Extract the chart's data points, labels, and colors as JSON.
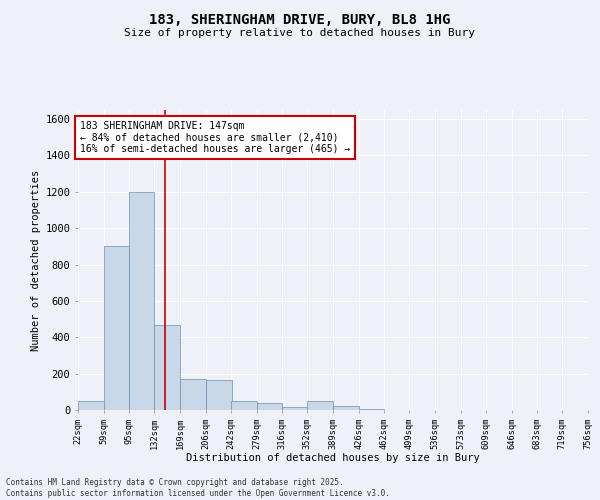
{
  "title_line1": "183, SHERINGHAM DRIVE, BURY, BL8 1HG",
  "title_line2": "Size of property relative to detached houses in Bury",
  "xlabel": "Distribution of detached houses by size in Bury",
  "ylabel": "Number of detached properties",
  "footer_line1": "Contains HM Land Registry data © Crown copyright and database right 2025.",
  "footer_line2": "Contains public sector information licensed under the Open Government Licence v3.0.",
  "bar_edges": [
    22,
    59,
    95,
    132,
    169,
    206,
    242,
    279,
    316,
    352,
    389,
    426,
    462,
    499,
    536,
    573,
    609,
    646,
    683,
    719,
    756
  ],
  "bar_heights": [
    50,
    900,
    1200,
    470,
    170,
    165,
    50,
    40,
    15,
    50,
    20,
    5,
    2,
    2,
    1,
    1,
    0,
    0,
    0,
    0
  ],
  "bar_color": "#c8d8e8",
  "bar_edgecolor": "#7090b0",
  "background_color": "#eef2f8",
  "grid_color": "#ffffff",
  "red_line_x": 147,
  "ylim": [
    0,
    1650
  ],
  "yticks": [
    0,
    200,
    400,
    600,
    800,
    1000,
    1200,
    1400,
    1600
  ],
  "annotation_title": "183 SHERINGHAM DRIVE: 147sqm",
  "annotation_line1": "← 84% of detached houses are smaller (2,410)",
  "annotation_line2": "16% of semi-detached houses are larger (465) →",
  "annotation_box_color": "#ffffff",
  "annotation_box_edgecolor": "#cc0000",
  "tick_labels": [
    "22sqm",
    "59sqm",
    "95sqm",
    "132sqm",
    "169sqm",
    "206sqm",
    "242sqm",
    "279sqm",
    "316sqm",
    "352sqm",
    "389sqm",
    "426sqm",
    "462sqm",
    "499sqm",
    "536sqm",
    "573sqm",
    "609sqm",
    "646sqm",
    "683sqm",
    "719sqm",
    "756sqm"
  ]
}
